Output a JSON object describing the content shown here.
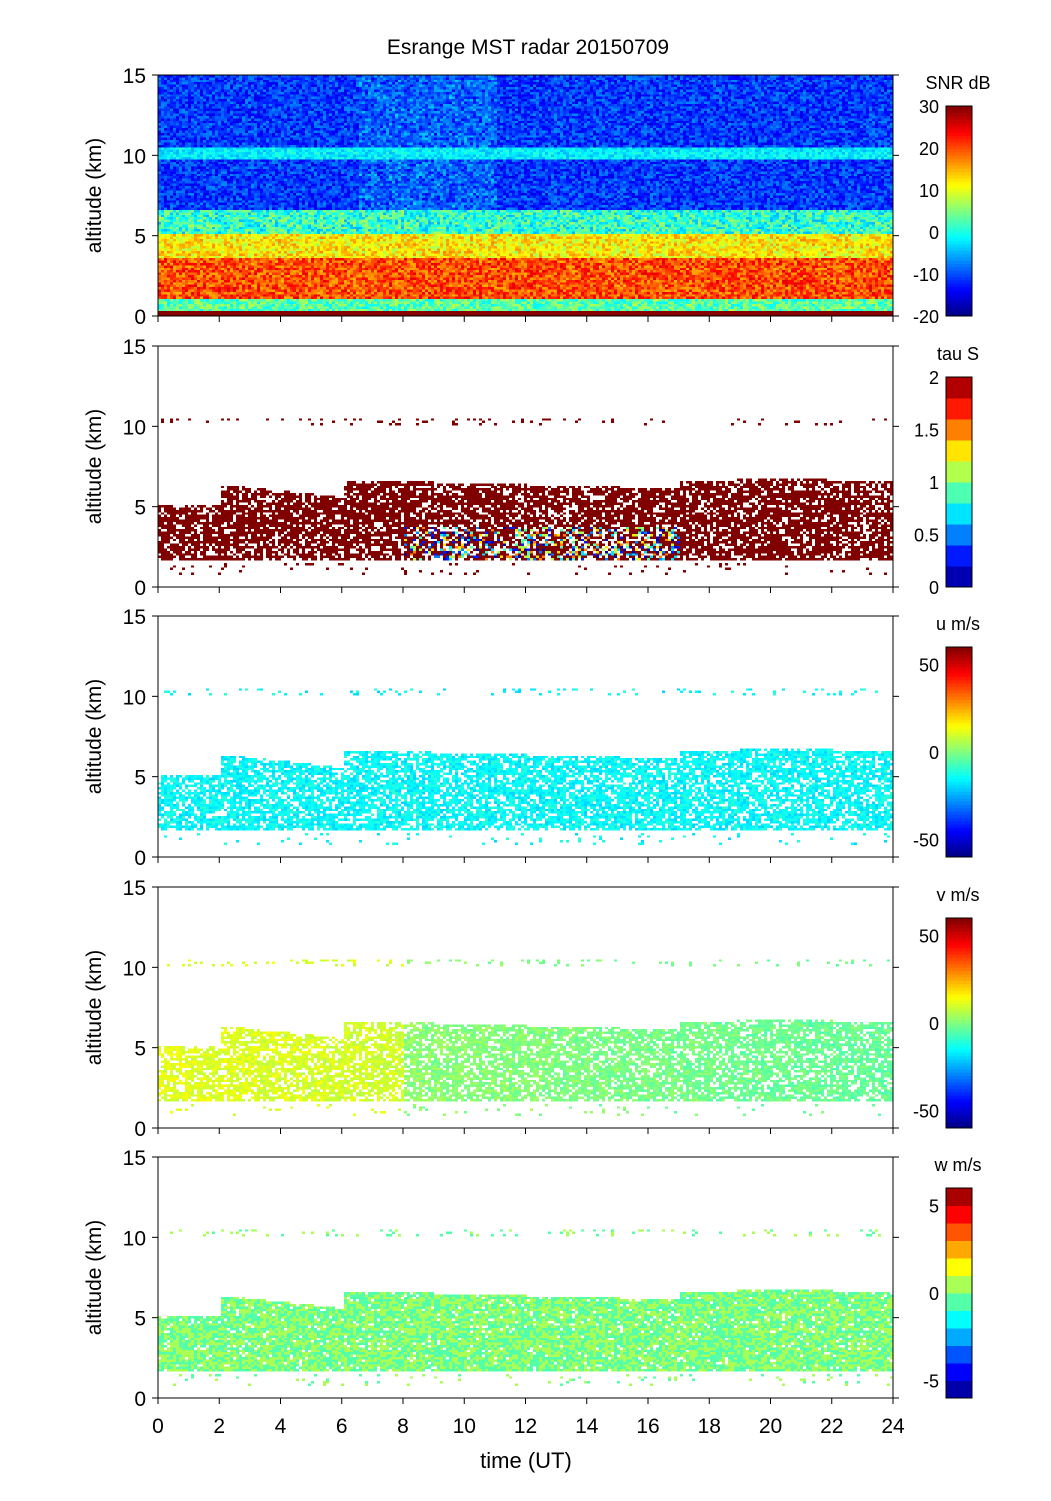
{
  "chart_data": {
    "type": "heatmap",
    "title": "Esrange MST radar 20150709",
    "xlabel": "time (UT)",
    "xlim": [
      0,
      24
    ],
    "xticks": [
      "0",
      "2",
      "4",
      "6",
      "8",
      "10",
      "12",
      "14",
      "16",
      "18",
      "20",
      "22",
      "24"
    ],
    "panels": [
      {
        "id": "snr",
        "ylabel": "altitude (km)",
        "ylim": [
          0,
          15
        ],
        "yticks": [
          "0",
          "5",
          "10",
          "15"
        ],
        "colorbar": {
          "label": "SNR dB",
          "range": [
            -20,
            30
          ],
          "ticks": [
            {
              "v": 30,
              "t": "30"
            },
            {
              "v": 20,
              "t": "20"
            },
            {
              "v": 10,
              "t": "10"
            },
            {
              "v": 0,
              "t": "0"
            },
            {
              "v": -10,
              "t": "-10"
            },
            {
              "v": -20,
              "t": "-20"
            }
          ],
          "levels": 64
        },
        "summary": "strong echoes (10-30 dB) below ~5 km, weak (-15 dB) above, layer near 10 km"
      },
      {
        "id": "tau",
        "ylabel": "altitude (km)",
        "ylim": [
          0,
          15
        ],
        "yticks": [
          "0",
          "5",
          "10",
          "15"
        ],
        "colorbar": {
          "label": "tau S",
          "range": [
            0,
            2
          ],
          "ticks": [
            {
              "v": 2,
              "t": "2"
            },
            {
              "v": 1.5,
              "t": "1.5"
            },
            {
              "v": 1,
              "t": "1"
            },
            {
              "v": 0.5,
              "t": "0.5"
            },
            {
              "v": 0,
              "t": "0"
            }
          ],
          "levels": 10
        },
        "summary": "mostly >2 s between 1.5 and 6 km; lower values 2-3.5 km 8-17 UT"
      },
      {
        "id": "u",
        "ylabel": "altitude (km)",
        "ylim": [
          0,
          15
        ],
        "yticks": [
          "0",
          "5",
          "10",
          "15"
        ],
        "colorbar": {
          "label": "u m/s",
          "range": [
            -60,
            60
          ],
          "ticks": [
            {
              "v": 50,
              "t": "50"
            },
            {
              "v": 0,
              "t": "0"
            },
            {
              "v": -50,
              "t": "-50"
            }
          ],
          "levels": 64
        },
        "summary": "about -15 m/s throughout 1.5-6.5 km"
      },
      {
        "id": "v",
        "ylabel": "altitude (km)",
        "ylim": [
          0,
          15
        ],
        "yticks": [
          "0",
          "5",
          "10",
          "15"
        ],
        "colorbar": {
          "label": "v m/s",
          "range": [
            -60,
            60
          ],
          "ticks": [
            {
              "v": 50,
              "t": "50"
            },
            {
              "v": 0,
              "t": "0"
            },
            {
              "v": -50,
              "t": "-50"
            }
          ],
          "levels": 64
        },
        "summary": "about +10 m/s early, near 0 m/s later"
      },
      {
        "id": "w",
        "ylabel": "altitude (km)",
        "ylim": [
          0,
          15
        ],
        "yticks": [
          "0",
          "5",
          "10",
          "15"
        ],
        "colorbar": {
          "label": "w m/s",
          "range": [
            -6,
            6
          ],
          "ticks": [
            {
              "v": 5,
              "t": "5"
            },
            {
              "v": 0,
              "t": "0"
            },
            {
              "v": -5,
              "t": "-5"
            }
          ],
          "levels": 12
        },
        "summary": "near 0 m/s, small fluctuations"
      }
    ]
  }
}
